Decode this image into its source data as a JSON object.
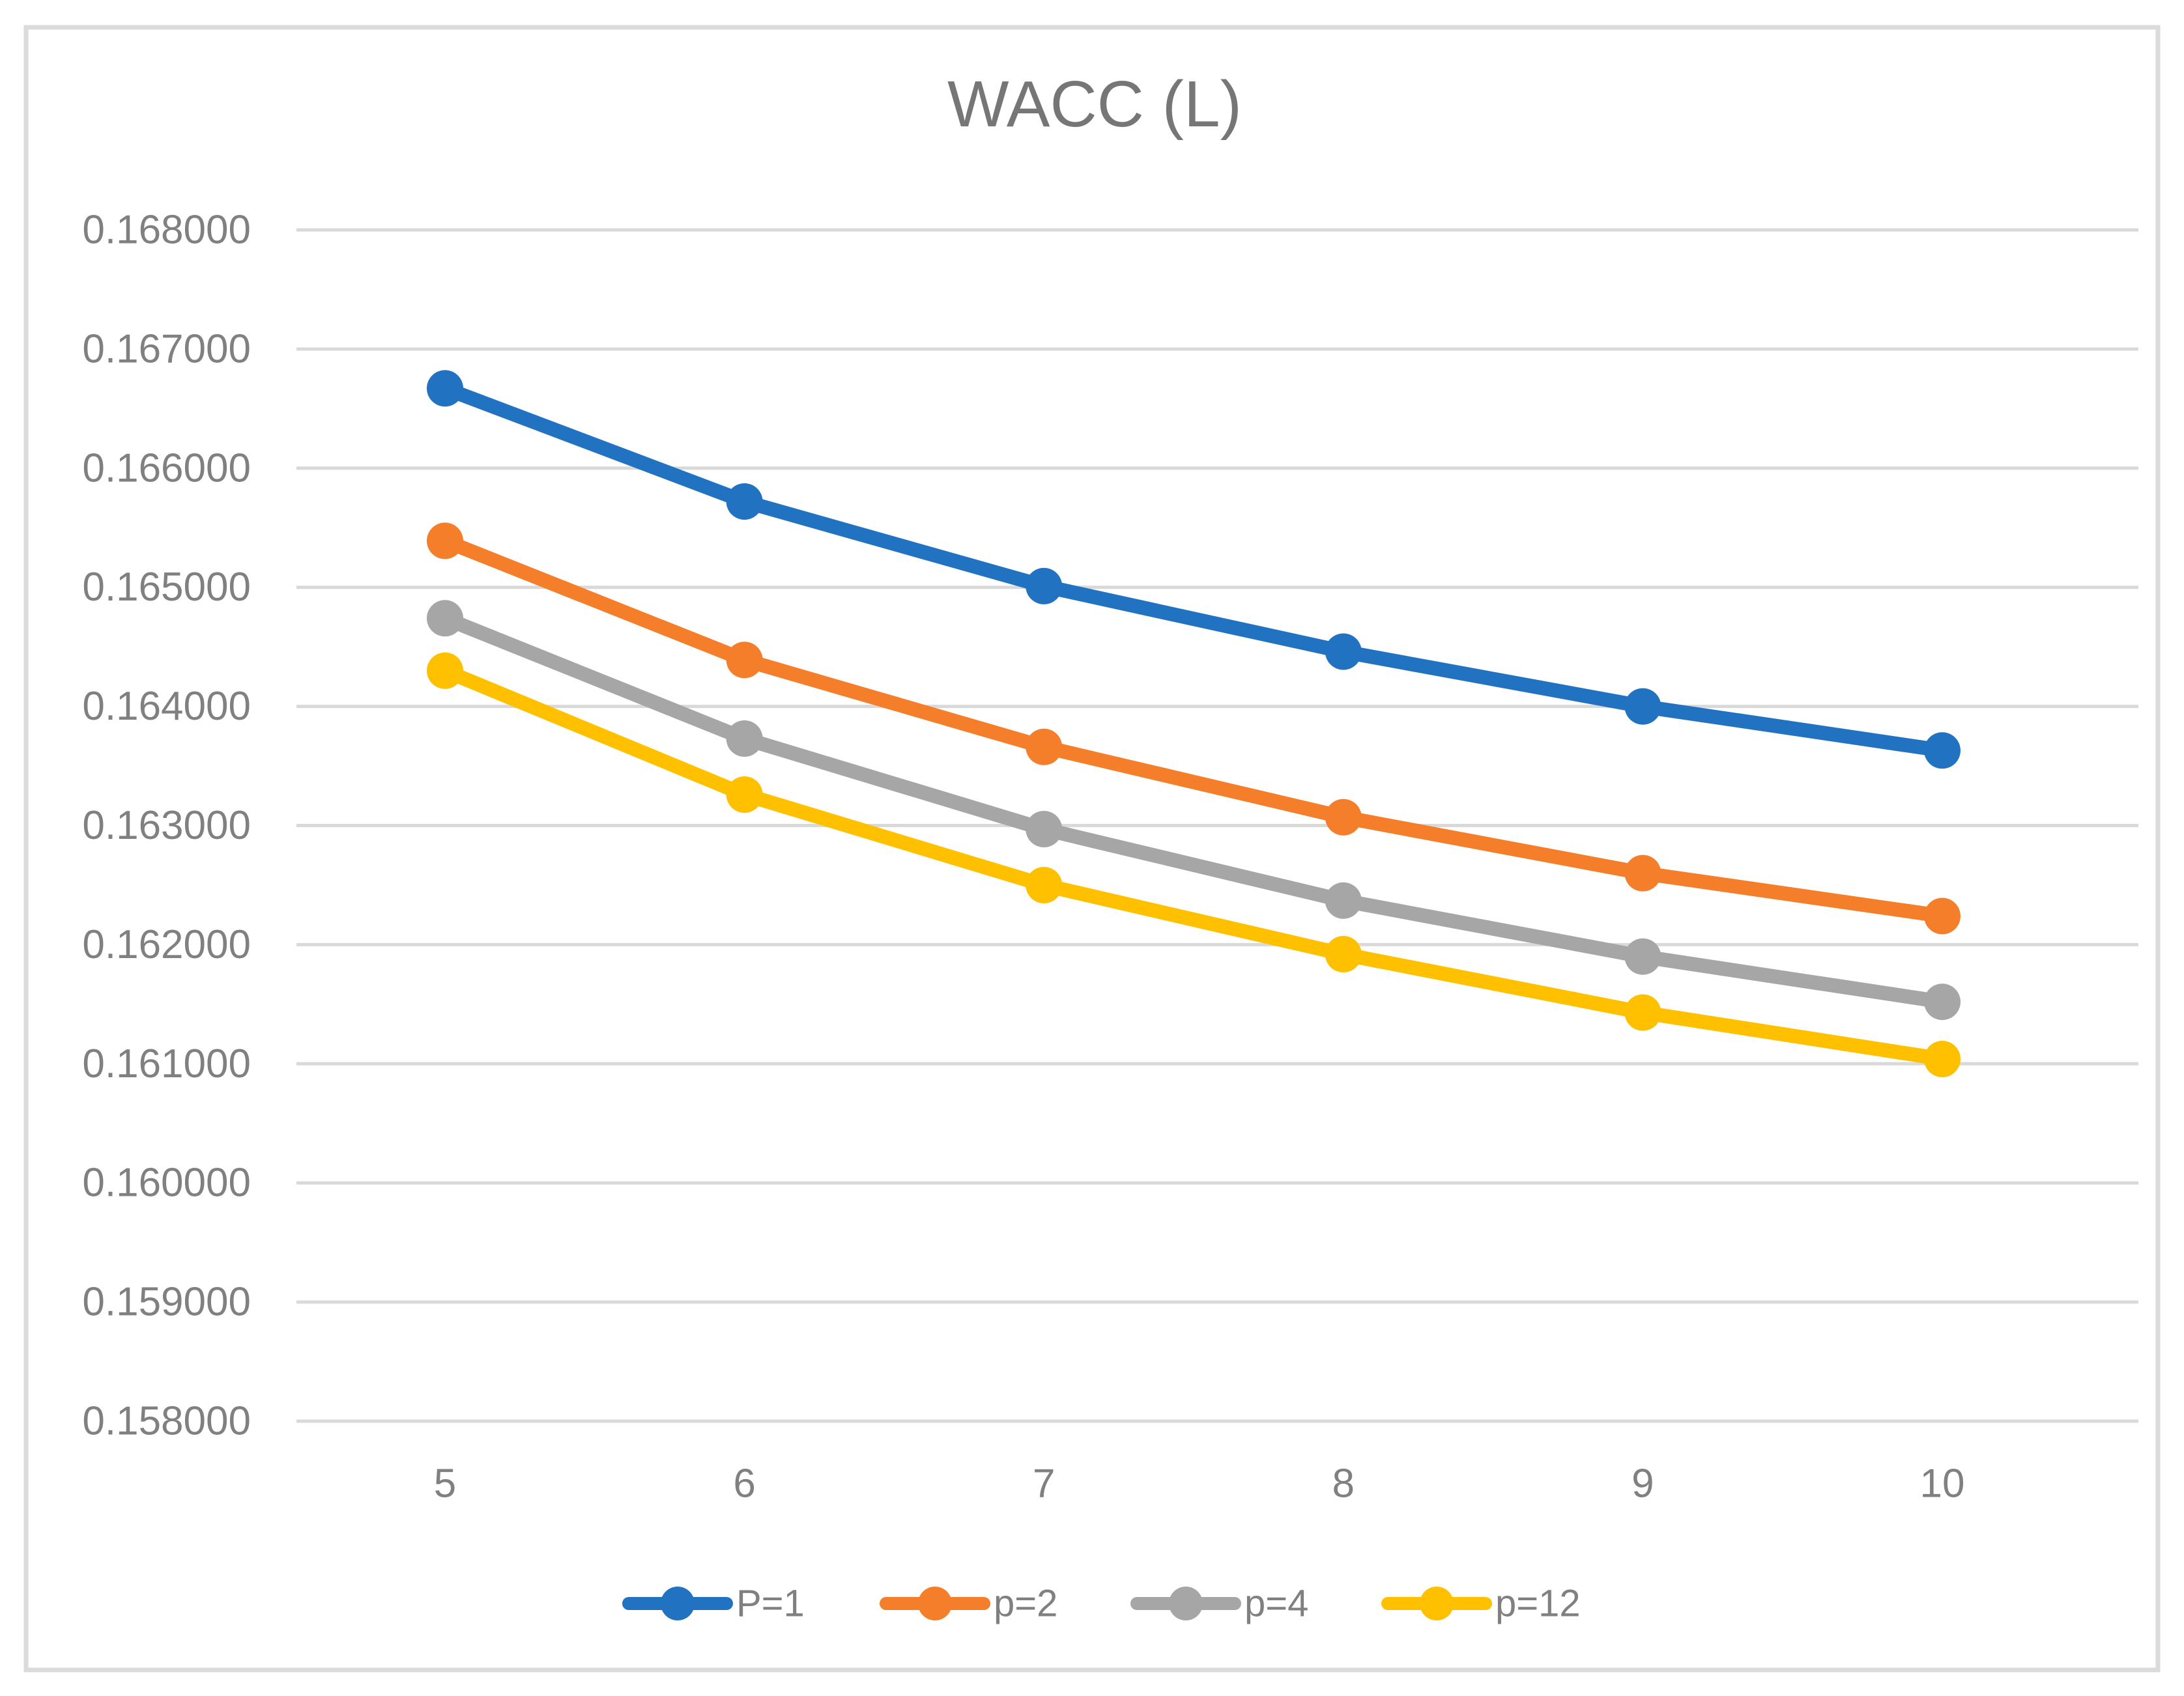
{
  "chart_data": {
    "type": "line",
    "title": "WACC (L)",
    "x": [
      5,
      6,
      7,
      8,
      9,
      10
    ],
    "x_tick_labels": [
      "5",
      "6",
      "7",
      "8",
      "9",
      "10"
    ],
    "y_tick_labels": [
      "0.168000",
      "0.167000",
      "0.166000",
      "0.165000",
      "0.164000",
      "0.163000",
      "0.162000",
      "0.161000",
      "0.160000",
      "0.159000",
      "0.158000"
    ],
    "ylim": [
      0.158,
      0.168
    ],
    "y_step": 0.001,
    "grid": true,
    "legend_position": "bottom",
    "series": [
      {
        "name": "P=1",
        "color": "#2173C2",
        "values": [
          0.16667,
          0.16572,
          0.16501,
          0.16446,
          0.164,
          0.16363
        ]
      },
      {
        "name": "p=2",
        "color": "#F57E2B",
        "values": [
          0.16539,
          0.16439,
          0.16366,
          0.16307,
          0.1626,
          0.16224
        ]
      },
      {
        "name": "p=4",
        "color": "#A6A6A6",
        "values": [
          0.16474,
          0.16373,
          0.16297,
          0.16237,
          0.1619,
          0.16152
        ]
      },
      {
        "name": "p=12",
        "color": "#FFC000",
        "values": [
          0.1643,
          0.16326,
          0.1625,
          0.16192,
          0.16143,
          0.16104
        ]
      }
    ]
  },
  "colors": {
    "background": "#FFFFFF",
    "frame_border": "#DBDBDB",
    "gridline": "#D9D9D9",
    "axis_text": "#808080",
    "title_text": "#767676"
  }
}
